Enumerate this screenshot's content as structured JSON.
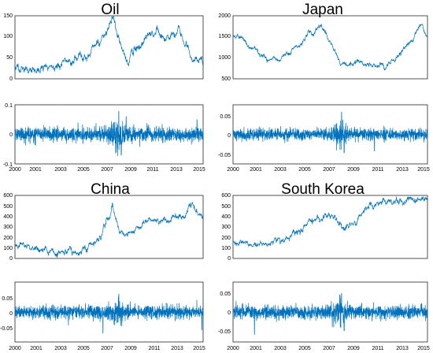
{
  "colors": {
    "series": "#0072BD",
    "axis": "#262626"
  },
  "chart_data": [
    {
      "type": "line",
      "title": "Oil",
      "x": [
        2000,
        2001.5,
        2003,
        2004.5,
        2006,
        2006.8,
        2007.5,
        2008.1,
        2008.8,
        2009.3,
        2010,
        2011,
        2011.5,
        2012.5,
        2013,
        2013.7,
        2014.3,
        2014.8,
        2015.3
      ],
      "y": [
        27,
        20,
        30,
        40,
        62,
        80,
        110,
        140,
        60,
        40,
        78,
        105,
        100,
        95,
        100,
        105,
        60,
        45,
        50
      ],
      "xlim": [
        2000,
        2015.4
      ],
      "ylim": [
        0,
        150
      ],
      "yticks": [
        "0",
        "50",
        "100",
        "150"
      ],
      "grid": false,
      "legend": "none"
    },
    {
      "type": "line",
      "title": "",
      "x": [
        2000,
        2015.4
      ],
      "y": [
        0,
        0
      ],
      "xlim": [
        2000,
        2015.4
      ],
      "ylim": [
        -0.1,
        0.1
      ],
      "yticks": [
        "-0.1",
        "0",
        "0.1"
      ],
      "xticks": [
        "2000",
        "2001",
        "2003",
        "2005",
        "2007",
        "2009",
        "2011",
        "2013",
        "2015"
      ],
      "description": "daily log-returns of oil, ~±0.02 typical, peaks near ±0.08 in 2008-2009",
      "grid": false,
      "legend": "none"
    },
    {
      "type": "line",
      "title": "Japan",
      "x": [
        2000,
        2001,
        2002,
        2003,
        2004,
        2005,
        2006,
        2007,
        2007.8,
        2008.5,
        2009,
        2010,
        2011,
        2012,
        2013,
        2014,
        2014.5,
        2015,
        2015.4
      ],
      "y": [
        1500,
        1400,
        1100,
        900,
        1000,
        1200,
        1650,
        1700,
        1400,
        900,
        850,
        950,
        850,
        800,
        1000,
        1400,
        1600,
        1800,
        1500
      ],
      "xlim": [
        2000,
        2015.4
      ],
      "ylim": [
        500,
        2000
      ],
      "yticks": [
        "500",
        "1000",
        "1500",
        "2000"
      ],
      "grid": false,
      "legend": "none"
    },
    {
      "type": "line",
      "title": "",
      "x": [
        2000,
        2015.4
      ],
      "y": [
        0,
        0
      ],
      "xlim": [
        2000,
        2015.4
      ],
      "ylim": [
        -0.08,
        0.08
      ],
      "yticks": [
        "-0.05",
        "0",
        "0.05"
      ],
      "xticks": [
        "2000",
        "2001",
        "2003",
        "2005",
        "2007",
        "2009",
        "2011",
        "2013",
        "2015"
      ],
      "description": "daily log-returns of the Japan index, peaks near ±0.06 in 2008",
      "grid": false,
      "legend": "none"
    },
    {
      "type": "line",
      "title": "China",
      "x": [
        2000,
        2001,
        2002,
        2003,
        2004,
        2005,
        2006,
        2007,
        2007.6,
        2008,
        2008.5,
        2009,
        2010,
        2011,
        2012,
        2013,
        2014,
        2014.5,
        2015,
        2015.4
      ],
      "y": [
        130,
        100,
        90,
        60,
        70,
        90,
        110,
        220,
        380,
        500,
        300,
        200,
        300,
        350,
        350,
        380,
        400,
        500,
        420,
        400
      ],
      "xlim": [
        2000,
        2015.4
      ],
      "ylim": [
        0,
        600
      ],
      "yticks": [
        "0",
        "100",
        "200",
        "300",
        "400",
        "500",
        "600"
      ],
      "grid": false,
      "legend": "none"
    },
    {
      "type": "line",
      "title": "",
      "x": [
        2000,
        2015.4
      ],
      "y": [
        0,
        0
      ],
      "xlim": [
        2000,
        2015.4
      ],
      "ylim": [
        -0.1,
        0.1
      ],
      "yticks": [
        "-0.05",
        "0",
        "0.05"
      ],
      "xticks": [
        "2000",
        "2001",
        "2003",
        "2005",
        "2007",
        "2009",
        "2011",
        "2013",
        "2015"
      ],
      "description": "daily log-returns of the China index, peaks near ±0.07",
      "grid": false,
      "legend": "none"
    },
    {
      "type": "line",
      "title": "South Korea",
      "x": [
        2000,
        2001,
        2001.5,
        2002,
        2003,
        2004,
        2005,
        2006,
        2007,
        2007.8,
        2008.6,
        2009,
        2010,
        2011,
        2012,
        2013,
        2014,
        2015,
        2015.4
      ],
      "y": [
        180,
        140,
        110,
        150,
        150,
        180,
        240,
        320,
        380,
        420,
        300,
        280,
        380,
        520,
        540,
        530,
        540,
        560,
        550
      ],
      "xlim": [
        2000,
        2015.4
      ],
      "ylim": [
        0,
        600
      ],
      "yticks": [
        "0",
        "100",
        "200",
        "300",
        "400",
        "500",
        "600"
      ],
      "grid": false,
      "legend": "none"
    },
    {
      "type": "line",
      "title": "",
      "x": [
        2000,
        2015.4
      ],
      "y": [
        0,
        0
      ],
      "xlim": [
        2000,
        2015.4
      ],
      "ylim": [
        -0.08,
        0.08
      ],
      "yticks": [
        "-0.05",
        "0",
        "0.05"
      ],
      "xticks": [
        "2000",
        "2001",
        "2003",
        "2005",
        "2007",
        "2009",
        "2011",
        "2013",
        "2015"
      ],
      "description": "daily log-returns of the South Korea index, peaks near ±0.05",
      "grid": false,
      "legend": "none"
    }
  ]
}
